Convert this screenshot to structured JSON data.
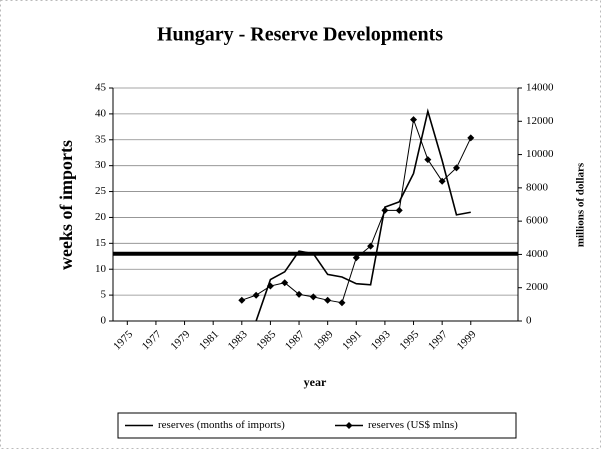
{
  "chart_data": {
    "type": "line",
    "title": "Hungary - Reserve Developments",
    "xlabel": "year",
    "ylabel": "weeks of imports",
    "y2label": "millions of dollars",
    "xlim": [
      1974,
      2002.3
    ],
    "xticks": [
      1975,
      1977,
      1979,
      1981,
      1983,
      1985,
      1987,
      1989,
      1991,
      1993,
      1995,
      1997,
      1999
    ],
    "ylim": [
      0,
      45
    ],
    "yticks": [
      0,
      5,
      10,
      15,
      20,
      25,
      30,
      35,
      40,
      45
    ],
    "y2lim": [
      0,
      14000
    ],
    "y2ticks": [
      0,
      2000,
      4000,
      6000,
      8000,
      10000,
      12000,
      14000
    ],
    "grid": true,
    "hline": 13,
    "legend": "bottom",
    "series": [
      {
        "name": "reserves (months of imports)",
        "color": "#000000",
        "marker": "none",
        "x": [
          1984,
          1985,
          1986,
          1987,
          1988,
          1989,
          1990,
          1991,
          1992,
          1993,
          1994,
          1995,
          1996,
          1997,
          1998,
          1999
        ],
        "values": [
          0,
          8,
          9.5,
          13.5,
          13,
          9,
          8.5,
          7.2,
          7,
          22,
          23,
          28.5,
          40.5,
          31,
          20.5,
          21
        ]
      },
      {
        "name": "reserves (US$ mlns)",
        "color": "#000000",
        "marker": "diamond",
        "axis": "y2",
        "x": [
          1983,
          1984,
          1985,
          1986,
          1987,
          1988,
          1989,
          1990,
          1991,
          1992,
          1993,
          1994,
          1995,
          1996,
          1997,
          1998,
          1999
        ],
        "values": [
          1250,
          1550,
          2100,
          2300,
          1600,
          1450,
          1250,
          1100,
          3800,
          4500,
          6650,
          6650,
          12100,
          9700,
          8400,
          9200,
          11000
        ]
      }
    ]
  }
}
